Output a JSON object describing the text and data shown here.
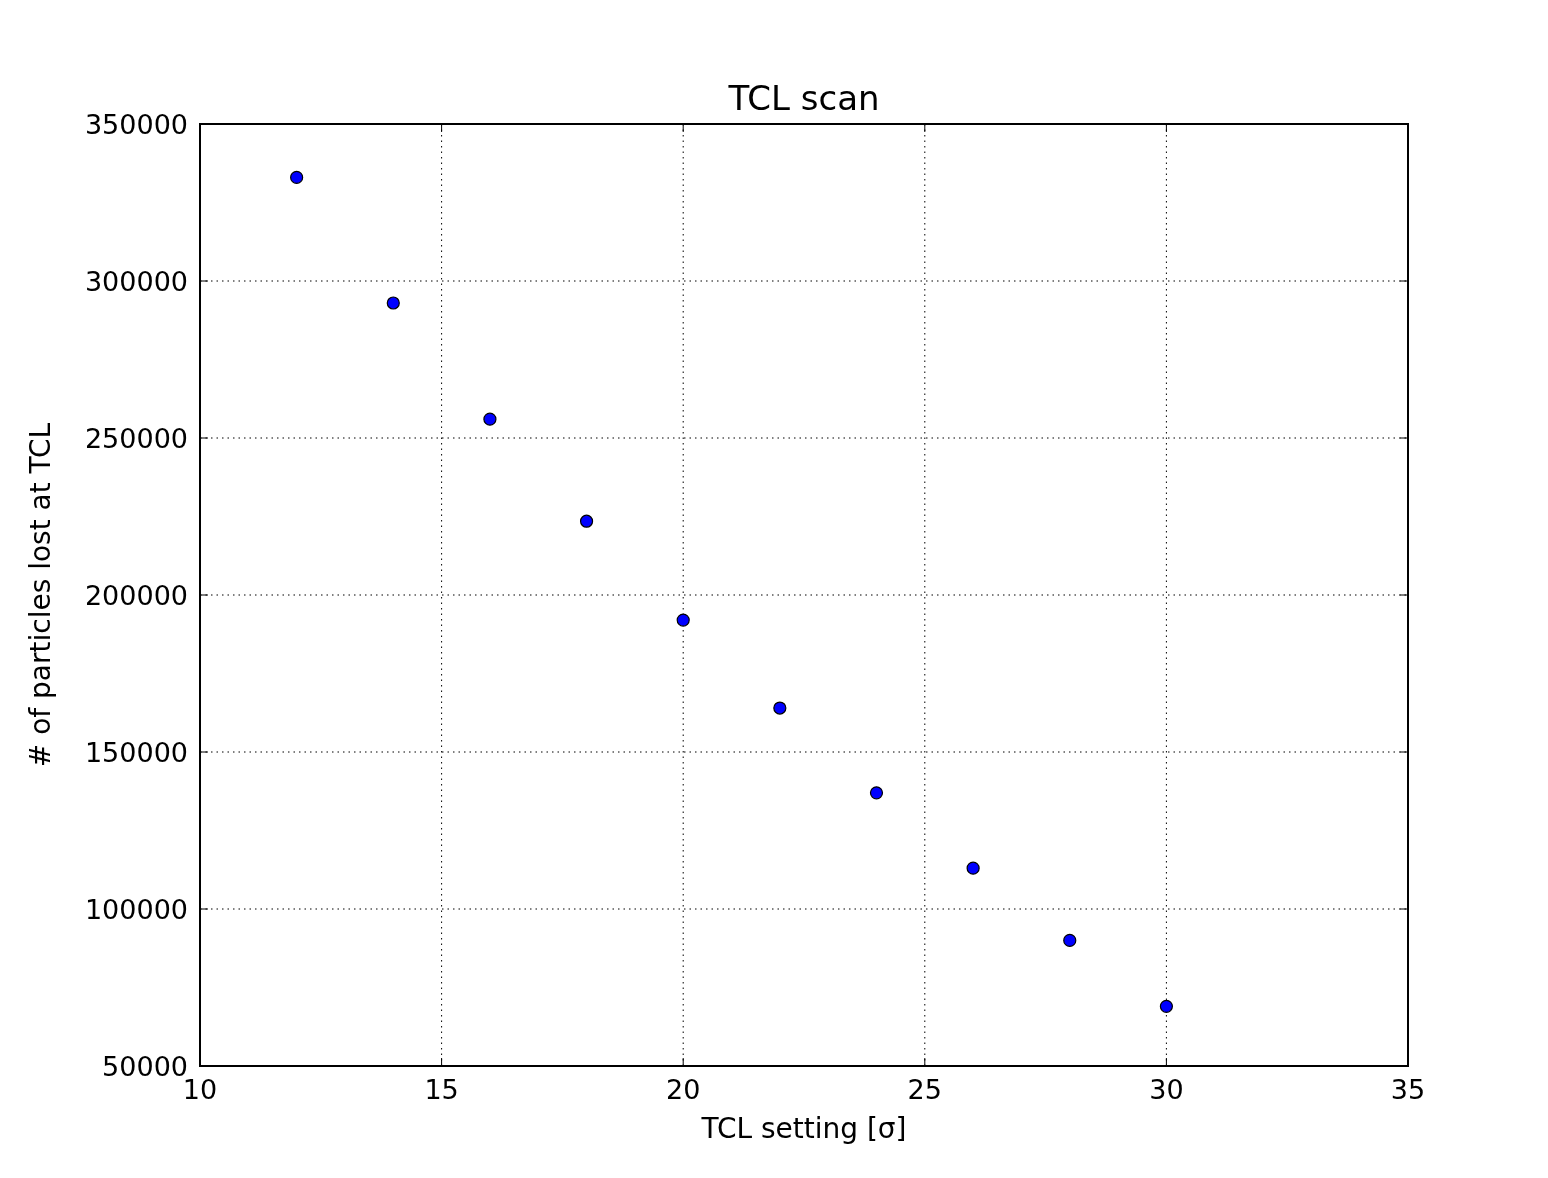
{
  "chart_data": {
    "type": "scatter",
    "title": "TCL scan",
    "xlabel": "TCL setting [σ]",
    "ylabel": "# of particles lost at TCL",
    "x": [
      12,
      14,
      16,
      18,
      20,
      22,
      24,
      26,
      28,
      30
    ],
    "series": [
      {
        "color": "#0000ff",
        "values": [
          333000,
          293000,
          256000,
          223500,
          192000,
          164000,
          137000,
          113000,
          90000,
          69000
        ]
      }
    ],
    "xlim": [
      10,
      35
    ],
    "xticks": [
      10,
      15,
      20,
      25,
      30,
      35
    ],
    "ylim": [
      50000,
      350000
    ],
    "yticks": [
      50000,
      100000,
      150000,
      200000,
      250000,
      300000,
      350000
    ],
    "grid": true,
    "marker": "circle"
  }
}
